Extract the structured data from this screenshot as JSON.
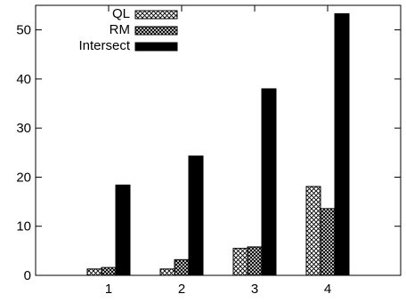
{
  "chart_data": {
    "type": "bar",
    "title": "",
    "xlabel": "",
    "ylabel": "",
    "categories": [
      "1",
      "2",
      "3",
      "4"
    ],
    "ylim": [
      0,
      55
    ],
    "yticks": [
      0,
      10,
      20,
      30,
      40,
      50
    ],
    "grid": false,
    "legend_position": "top-left",
    "series": [
      {
        "name": "QL",
        "pattern": "crosshatch-light",
        "values": [
          1.3,
          1.3,
          5.5,
          18.1
        ]
      },
      {
        "name": "RM",
        "pattern": "crosshatch-dense",
        "values": [
          1.6,
          3.2,
          5.8,
          13.6
        ]
      },
      {
        "name": "Intersect",
        "pattern": "solid-black",
        "values": [
          18.4,
          24.3,
          38.0,
          53.3
        ]
      }
    ]
  }
}
